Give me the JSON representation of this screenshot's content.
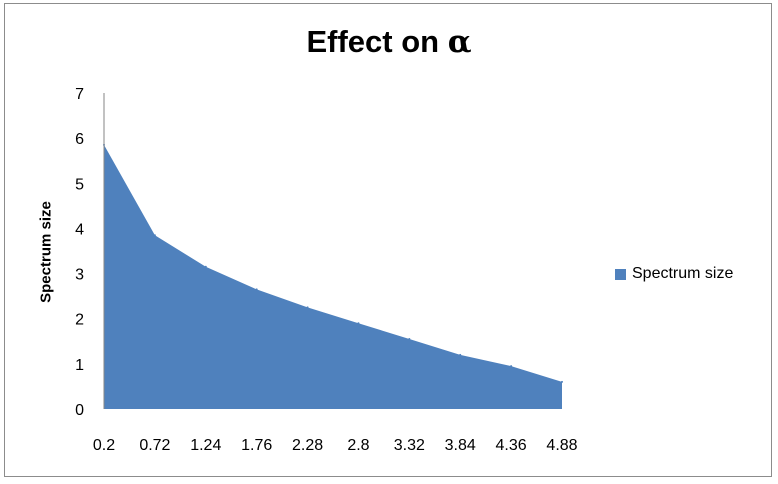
{
  "chart_data": {
    "type": "area",
    "title": "Effect on α",
    "title_parts": [
      "Effect on ",
      "α"
    ],
    "xlabel": "",
    "ylabel": "Spectrum size",
    "x": [
      0.2,
      0.72,
      1.24,
      1.76,
      2.28,
      2.8,
      3.32,
      3.84,
      4.36,
      4.88
    ],
    "x_tick_labels": [
      "0.2",
      "0.72",
      "1.24",
      "1.76",
      "2.28",
      "2.8",
      "3.32",
      "3.84",
      "4.36",
      "4.88"
    ],
    "y_tick_labels": [
      "0",
      "1",
      "2",
      "3",
      "4",
      "5",
      "6",
      "7"
    ],
    "ylim": [
      0,
      7
    ],
    "series": [
      {
        "name": "Spectrum size",
        "color": "#4f81bd",
        "values": [
          5.85,
          3.85,
          3.15,
          2.65,
          2.25,
          1.9,
          1.55,
          1.2,
          0.95,
          0.6
        ]
      }
    ],
    "grid": false,
    "legend_position": "right"
  }
}
